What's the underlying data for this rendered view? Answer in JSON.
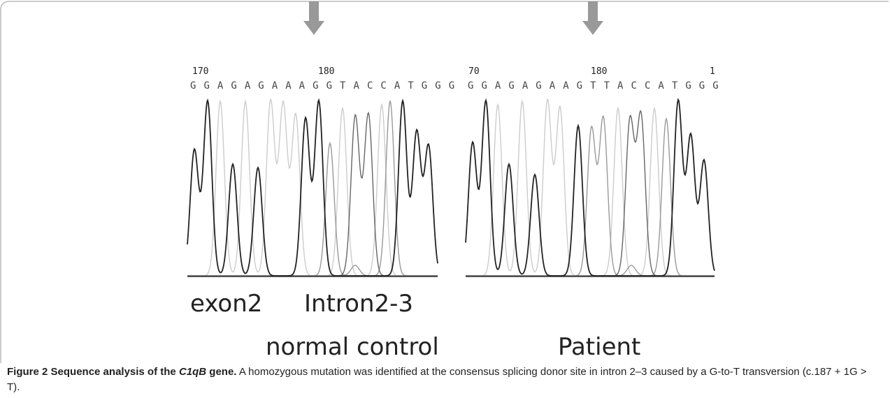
{
  "figure": {
    "panels": [
      {
        "positions": [
          "170",
          "180"
        ],
        "sequence": "G G A G A G A A A G G T A C C A T G G G",
        "labels": [
          "exon2",
          "Intron2-3"
        ],
        "title": "normal control"
      },
      {
        "positions": [
          "70",
          "180",
          "1"
        ],
        "sequence": "G G A G A G A A G T T A C C A T G G G",
        "title": "Patient"
      }
    ],
    "caption": {
      "label": "Figure 2",
      "title_start": "Sequence analysis of the",
      "gene": "C1qB",
      "title_end": "gene.",
      "text": "A homozygous mutation was identified at the consensus splicing donor site in intron 2–3 caused by a G-to-T transversion (c.187 + 1G > T)."
    }
  }
}
